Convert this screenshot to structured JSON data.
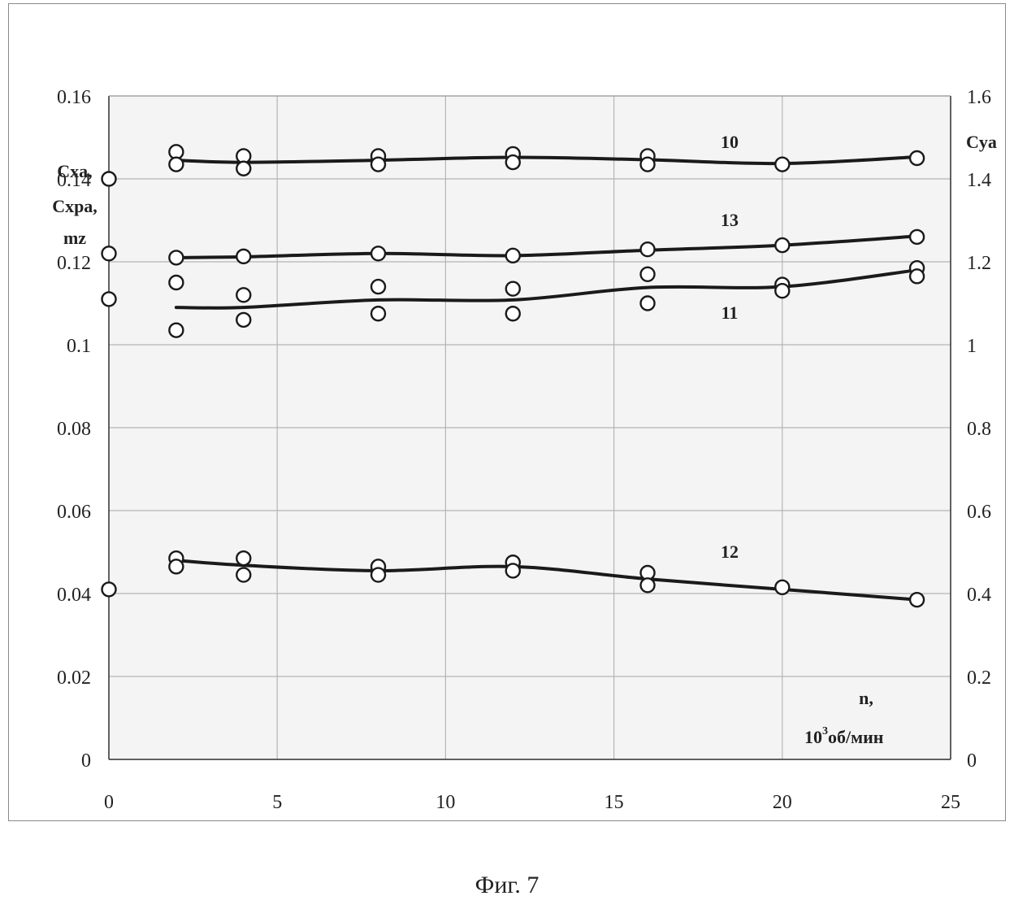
{
  "caption": "Фиг. 7",
  "chart_data": {
    "type": "line",
    "x_ticks": [
      "0",
      "5",
      "10",
      "15",
      "20",
      "25"
    ],
    "y_left_ticks": [
      "0",
      "0.02",
      "0.04",
      "0.06",
      "0.08",
      "0.1",
      "0.12",
      "0.14",
      "0.16"
    ],
    "y_right_ticks": [
      "0",
      "0.2",
      "0.4",
      "0.6",
      "0.8",
      "1",
      "1.2",
      "1.4",
      "1.6"
    ],
    "xlim": [
      0,
      25
    ],
    "ylim_left": [
      0,
      0.16
    ],
    "ylim_right": [
      0,
      1.6
    ],
    "grid": true,
    "left_label_lines": [
      "Cxa,",
      "Cxpa,",
      "mz"
    ],
    "right_label": "Cya",
    "x_label_line1": "n,",
    "x_label_base": "10",
    "x_label_sup": "3",
    "x_label_rest": "об/мин",
    "series": [
      {
        "name": "10",
        "axis": "right",
        "curve_x": [
          2,
          4,
          8,
          12,
          16,
          20,
          24
        ],
        "curve_y": [
          1.445,
          1.44,
          1.445,
          1.452,
          1.446,
          1.437,
          1.453
        ],
        "points_x": [
          0,
          2,
          2,
          4,
          4,
          8,
          8,
          12,
          12,
          16,
          16,
          20,
          24
        ],
        "points_y": [
          1.4,
          1.465,
          1.435,
          1.455,
          1.425,
          1.455,
          1.435,
          1.46,
          1.44,
          1.455,
          1.435,
          1.435,
          1.45
        ]
      },
      {
        "name": "13",
        "axis": "right",
        "curve_x": [
          2,
          4,
          8,
          12,
          16,
          20,
          24
        ],
        "curve_y": [
          1.21,
          1.212,
          1.22,
          1.215,
          1.228,
          1.24,
          1.262
        ],
        "points_x": [
          0,
          2,
          4,
          8,
          12,
          16,
          20,
          24
        ],
        "points_y": [
          1.22,
          1.21,
          1.213,
          1.22,
          1.215,
          1.23,
          1.24,
          1.26
        ]
      },
      {
        "name": "11",
        "axis": "right",
        "curve_x": [
          2,
          4,
          8,
          12,
          16,
          20,
          24
        ],
        "curve_y": [
          1.09,
          1.09,
          1.108,
          1.108,
          1.138,
          1.14,
          1.18
        ],
        "points_x": [
          0,
          2,
          2,
          4,
          4,
          8,
          8,
          12,
          12,
          16,
          16,
          20,
          20,
          24,
          24
        ],
        "points_y": [
          1.11,
          1.15,
          1.035,
          1.12,
          1.06,
          1.14,
          1.075,
          1.135,
          1.075,
          1.17,
          1.1,
          1.145,
          1.13,
          1.185,
          1.165
        ]
      },
      {
        "name": "12",
        "axis": "right",
        "curve_x": [
          2,
          4,
          8,
          12,
          16,
          20,
          24
        ],
        "curve_y": [
          0.48,
          0.468,
          0.455,
          0.465,
          0.435,
          0.41,
          0.385
        ],
        "points_x": [
          0,
          2,
          2,
          4,
          4,
          8,
          8,
          12,
          12,
          16,
          16,
          20,
          24
        ],
        "points_y": [
          0.41,
          0.485,
          0.465,
          0.485,
          0.445,
          0.465,
          0.445,
          0.475,
          0.455,
          0.45,
          0.42,
          0.415,
          0.385
        ]
      }
    ]
  }
}
